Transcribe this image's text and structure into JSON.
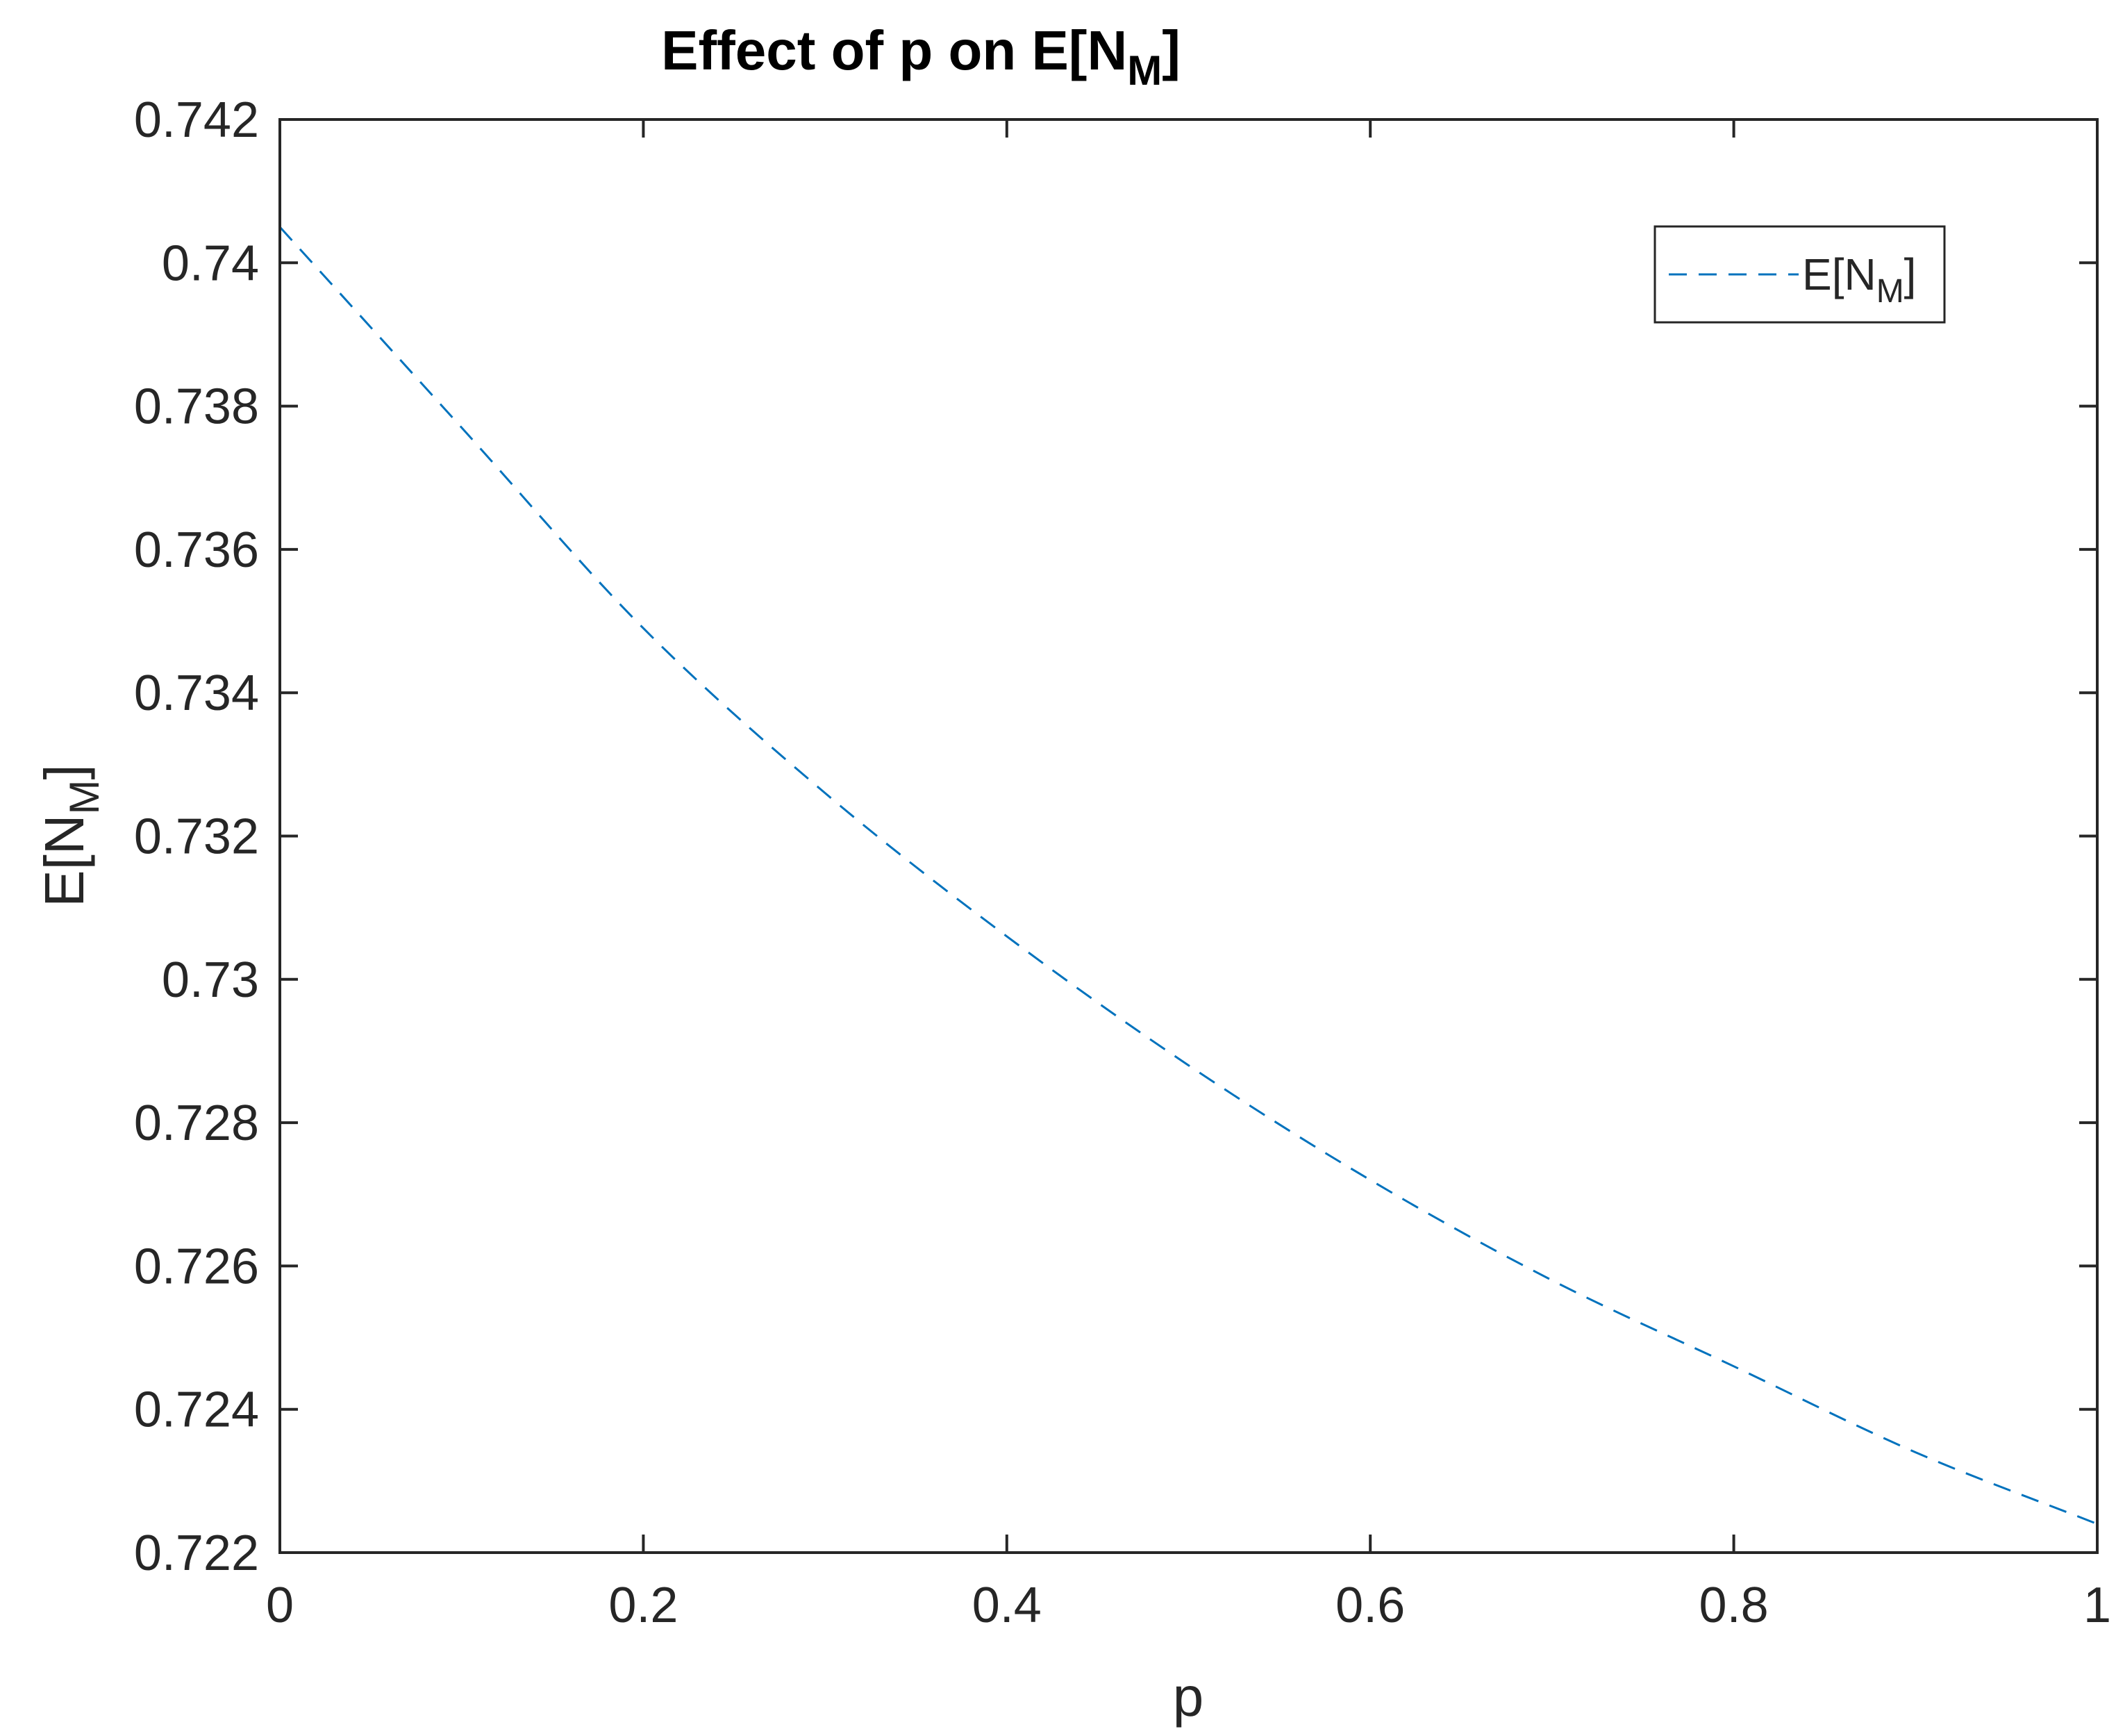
{
  "chart_data": {
    "type": "line",
    "title": {
      "main": "Effect of p on E[N",
      "sub": "M",
      "tail": "]"
    },
    "xlabel": "p",
    "ylabel": {
      "main": "E[N",
      "sub": "M",
      "tail": "]"
    },
    "xlim": [
      0,
      1
    ],
    "ylim": [
      0.722,
      0.742
    ],
    "xticks": [
      0,
      0.2,
      0.4,
      0.6,
      0.8,
      1
    ],
    "xtick_labels": [
      "0",
      "0.2",
      "0.4",
      "0.6",
      "0.8",
      "1"
    ],
    "yticks": [
      0.722,
      0.724,
      0.726,
      0.728,
      0.73,
      0.732,
      0.734,
      0.736,
      0.738,
      0.74,
      0.742
    ],
    "ytick_labels": [
      "0.722",
      "0.724",
      "0.726",
      "0.728",
      "0.73",
      "0.732",
      "0.734",
      "0.736",
      "0.738",
      "0.74",
      "0.742"
    ],
    "grid": false,
    "legend_position": "top-right",
    "series": [
      {
        "name": {
          "main": "E[N",
          "sub": "M",
          "tail": "]"
        },
        "color": "#0072BD",
        "line_style": "dashed",
        "x": [
          0,
          0.1,
          0.2,
          0.3,
          0.4,
          0.5,
          0.6,
          0.7,
          0.8,
          0.9,
          1.0
        ],
        "y": [
          0.7405,
          0.7377,
          0.7349,
          0.7326,
          0.7306,
          0.7288,
          0.7272,
          0.7258,
          0.7246,
          0.7234,
          0.7224
        ]
      }
    ]
  }
}
